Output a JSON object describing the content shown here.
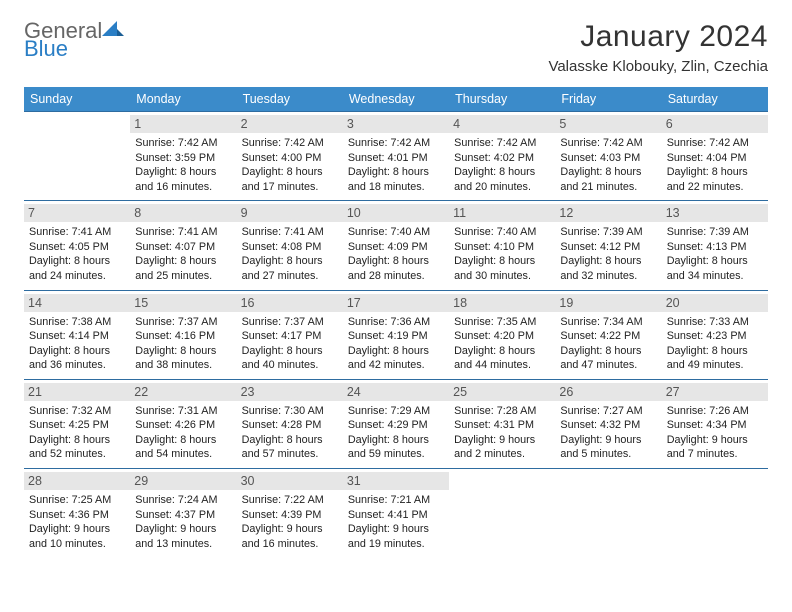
{
  "logo": {
    "general": "General",
    "blue": "Blue"
  },
  "title": "January 2024",
  "location": "Valasske Klobouky, Zlin, Czechia",
  "colors": {
    "header_bg": "#3b8bca",
    "header_text": "#ffffff",
    "divider": "#2e6ca0",
    "daynum_bg": "#e6e6e6",
    "daynum_text": "#555555",
    "body_text": "#222222",
    "logo_gray": "#666666",
    "logo_blue": "#2a7ec5"
  },
  "day_headers": [
    "Sunday",
    "Monday",
    "Tuesday",
    "Wednesday",
    "Thursday",
    "Friday",
    "Saturday"
  ],
  "weeks": [
    [
      {
        "num": "",
        "lines": [
          "",
          "",
          "",
          ""
        ]
      },
      {
        "num": "1",
        "lines": [
          "Sunrise: 7:42 AM",
          "Sunset: 3:59 PM",
          "Daylight: 8 hours",
          "and 16 minutes."
        ]
      },
      {
        "num": "2",
        "lines": [
          "Sunrise: 7:42 AM",
          "Sunset: 4:00 PM",
          "Daylight: 8 hours",
          "and 17 minutes."
        ]
      },
      {
        "num": "3",
        "lines": [
          "Sunrise: 7:42 AM",
          "Sunset: 4:01 PM",
          "Daylight: 8 hours",
          "and 18 minutes."
        ]
      },
      {
        "num": "4",
        "lines": [
          "Sunrise: 7:42 AM",
          "Sunset: 4:02 PM",
          "Daylight: 8 hours",
          "and 20 minutes."
        ]
      },
      {
        "num": "5",
        "lines": [
          "Sunrise: 7:42 AM",
          "Sunset: 4:03 PM",
          "Daylight: 8 hours",
          "and 21 minutes."
        ]
      },
      {
        "num": "6",
        "lines": [
          "Sunrise: 7:42 AM",
          "Sunset: 4:04 PM",
          "Daylight: 8 hours",
          "and 22 minutes."
        ]
      }
    ],
    [
      {
        "num": "7",
        "lines": [
          "Sunrise: 7:41 AM",
          "Sunset: 4:05 PM",
          "Daylight: 8 hours",
          "and 24 minutes."
        ]
      },
      {
        "num": "8",
        "lines": [
          "Sunrise: 7:41 AM",
          "Sunset: 4:07 PM",
          "Daylight: 8 hours",
          "and 25 minutes."
        ]
      },
      {
        "num": "9",
        "lines": [
          "Sunrise: 7:41 AM",
          "Sunset: 4:08 PM",
          "Daylight: 8 hours",
          "and 27 minutes."
        ]
      },
      {
        "num": "10",
        "lines": [
          "Sunrise: 7:40 AM",
          "Sunset: 4:09 PM",
          "Daylight: 8 hours",
          "and 28 minutes."
        ]
      },
      {
        "num": "11",
        "lines": [
          "Sunrise: 7:40 AM",
          "Sunset: 4:10 PM",
          "Daylight: 8 hours",
          "and 30 minutes."
        ]
      },
      {
        "num": "12",
        "lines": [
          "Sunrise: 7:39 AM",
          "Sunset: 4:12 PM",
          "Daylight: 8 hours",
          "and 32 minutes."
        ]
      },
      {
        "num": "13",
        "lines": [
          "Sunrise: 7:39 AM",
          "Sunset: 4:13 PM",
          "Daylight: 8 hours",
          "and 34 minutes."
        ]
      }
    ],
    [
      {
        "num": "14",
        "lines": [
          "Sunrise: 7:38 AM",
          "Sunset: 4:14 PM",
          "Daylight: 8 hours",
          "and 36 minutes."
        ]
      },
      {
        "num": "15",
        "lines": [
          "Sunrise: 7:37 AM",
          "Sunset: 4:16 PM",
          "Daylight: 8 hours",
          "and 38 minutes."
        ]
      },
      {
        "num": "16",
        "lines": [
          "Sunrise: 7:37 AM",
          "Sunset: 4:17 PM",
          "Daylight: 8 hours",
          "and 40 minutes."
        ]
      },
      {
        "num": "17",
        "lines": [
          "Sunrise: 7:36 AM",
          "Sunset: 4:19 PM",
          "Daylight: 8 hours",
          "and 42 minutes."
        ]
      },
      {
        "num": "18",
        "lines": [
          "Sunrise: 7:35 AM",
          "Sunset: 4:20 PM",
          "Daylight: 8 hours",
          "and 44 minutes."
        ]
      },
      {
        "num": "19",
        "lines": [
          "Sunrise: 7:34 AM",
          "Sunset: 4:22 PM",
          "Daylight: 8 hours",
          "and 47 minutes."
        ]
      },
      {
        "num": "20",
        "lines": [
          "Sunrise: 7:33 AM",
          "Sunset: 4:23 PM",
          "Daylight: 8 hours",
          "and 49 minutes."
        ]
      }
    ],
    [
      {
        "num": "21",
        "lines": [
          "Sunrise: 7:32 AM",
          "Sunset: 4:25 PM",
          "Daylight: 8 hours",
          "and 52 minutes."
        ]
      },
      {
        "num": "22",
        "lines": [
          "Sunrise: 7:31 AM",
          "Sunset: 4:26 PM",
          "Daylight: 8 hours",
          "and 54 minutes."
        ]
      },
      {
        "num": "23",
        "lines": [
          "Sunrise: 7:30 AM",
          "Sunset: 4:28 PM",
          "Daylight: 8 hours",
          "and 57 minutes."
        ]
      },
      {
        "num": "24",
        "lines": [
          "Sunrise: 7:29 AM",
          "Sunset: 4:29 PM",
          "Daylight: 8 hours",
          "and 59 minutes."
        ]
      },
      {
        "num": "25",
        "lines": [
          "Sunrise: 7:28 AM",
          "Sunset: 4:31 PM",
          "Daylight: 9 hours",
          "and 2 minutes."
        ]
      },
      {
        "num": "26",
        "lines": [
          "Sunrise: 7:27 AM",
          "Sunset: 4:32 PM",
          "Daylight: 9 hours",
          "and 5 minutes."
        ]
      },
      {
        "num": "27",
        "lines": [
          "Sunrise: 7:26 AM",
          "Sunset: 4:34 PM",
          "Daylight: 9 hours",
          "and 7 minutes."
        ]
      }
    ],
    [
      {
        "num": "28",
        "lines": [
          "Sunrise: 7:25 AM",
          "Sunset: 4:36 PM",
          "Daylight: 9 hours",
          "and 10 minutes."
        ]
      },
      {
        "num": "29",
        "lines": [
          "Sunrise: 7:24 AM",
          "Sunset: 4:37 PM",
          "Daylight: 9 hours",
          "and 13 minutes."
        ]
      },
      {
        "num": "30",
        "lines": [
          "Sunrise: 7:22 AM",
          "Sunset: 4:39 PM",
          "Daylight: 9 hours",
          "and 16 minutes."
        ]
      },
      {
        "num": "31",
        "lines": [
          "Sunrise: 7:21 AM",
          "Sunset: 4:41 PM",
          "Daylight: 9 hours",
          "and 19 minutes."
        ]
      },
      {
        "num": "",
        "lines": [
          "",
          "",
          "",
          ""
        ]
      },
      {
        "num": "",
        "lines": [
          "",
          "",
          "",
          ""
        ]
      },
      {
        "num": "",
        "lines": [
          "",
          "",
          "",
          ""
        ]
      }
    ]
  ]
}
